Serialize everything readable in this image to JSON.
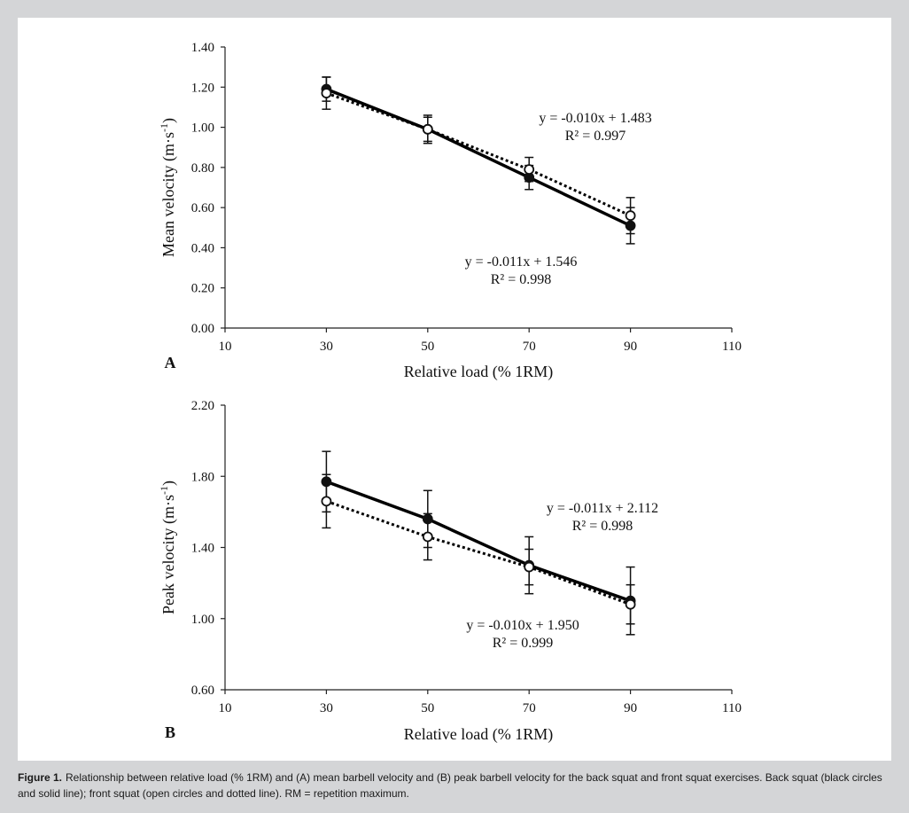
{
  "chart_data": [
    {
      "type": "line",
      "panel_label": "A",
      "xlabel": "Relative load (% 1RM)",
      "ylabel": "Mean velocity (m·s",
      "ylabel_sup": "-1",
      "ylabel_end": ")",
      "xlim": [
        10,
        110
      ],
      "ylim": [
        0.0,
        1.4
      ],
      "x_ticks": [
        "10",
        "30",
        "50",
        "70",
        "90",
        "110"
      ],
      "y_ticks": [
        "0.00",
        "0.20",
        "0.40",
        "0.60",
        "0.80",
        "1.00",
        "1.20",
        "1.40"
      ],
      "grid": false,
      "series": [
        {
          "marker": "filled-circle",
          "line": "solid",
          "color": "#000000",
          "x": [
            30,
            50,
            70,
            90
          ],
          "y": [
            1.19,
            0.99,
            0.75,
            0.51
          ],
          "error": [
            0.06,
            0.07,
            0.06,
            0.09
          ],
          "equation": "y = -0.011x + 1.546",
          "r2": "R² = 0.998"
        },
        {
          "marker": "open-circle",
          "line": "dotted",
          "color": "#000000",
          "x": [
            30,
            50,
            70,
            90
          ],
          "y": [
            1.17,
            0.99,
            0.79,
            0.56
          ],
          "error": [
            0.08,
            0.06,
            0.06,
            0.09
          ],
          "equation": "y = -0.010x + 1.483",
          "r2": "R² = 0.997"
        }
      ]
    },
    {
      "type": "line",
      "panel_label": "B",
      "xlabel": "Relative load (% 1RM)",
      "ylabel": "Peak velocity (m·s",
      "ylabel_sup": "-1",
      "ylabel_end": ")",
      "xlim": [
        10,
        110
      ],
      "ylim": [
        0.6,
        2.2
      ],
      "x_ticks": [
        "10",
        "30",
        "50",
        "70",
        "90",
        "110"
      ],
      "y_ticks": [
        "0.60",
        "1.00",
        "1.40",
        "1.80",
        "2.20"
      ],
      "grid": false,
      "series": [
        {
          "marker": "filled-circle",
          "line": "solid",
          "color": "#000000",
          "x": [
            30,
            50,
            70,
            90
          ],
          "y": [
            1.77,
            1.56,
            1.3,
            1.1
          ],
          "error": [
            0.17,
            0.16,
            0.16,
            0.19
          ],
          "equation": "y = -0.011x + 2.112",
          "r2": "R² = 0.998"
        },
        {
          "marker": "open-circle",
          "line": "dotted",
          "color": "#000000",
          "x": [
            30,
            50,
            70,
            90
          ],
          "y": [
            1.66,
            1.46,
            1.29,
            1.08
          ],
          "error": [
            0.15,
            0.13,
            0.1,
            0.11
          ],
          "equation": "y = -0.010x + 1.950",
          "r2": "R² = 0.999"
        }
      ]
    }
  ],
  "caption": {
    "label": "Figure 1.",
    "text": "Relationship between relative load (% 1RM) and (A) mean barbell velocity and (B) peak barbell velocity for the back squat and front squat exercises. Back squat (black circles and solid line); front squat (open circles and dotted line). RM = repetition maximum."
  }
}
